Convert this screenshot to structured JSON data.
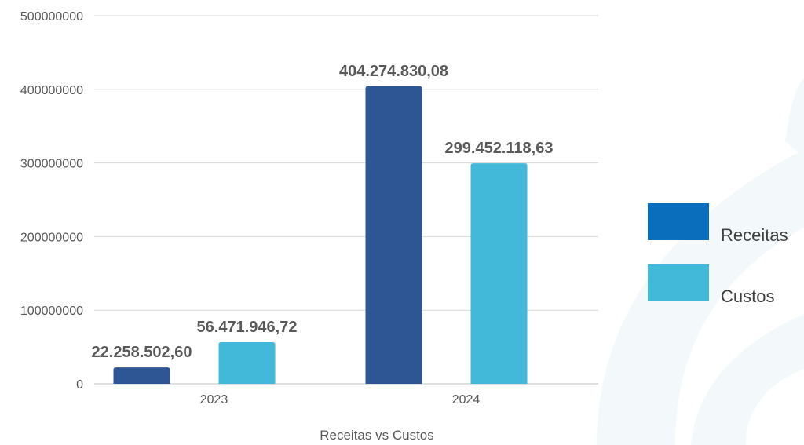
{
  "chart_data": {
    "type": "bar",
    "title": "Receitas vs Custos",
    "categories": [
      "2023",
      "2024"
    ],
    "series": [
      {
        "name": "Receitas",
        "values": [
          22258502.6,
          404274830.08
        ],
        "labels": [
          "22.258.502,60",
          "404.274.830,08"
        ],
        "color": "#2e5594"
      },
      {
        "name": "Custos",
        "values": [
          56471946.72,
          299452118.63
        ],
        "labels": [
          "56.471.946,72",
          "299.452.118,63"
        ],
        "color": "#43b9d9"
      }
    ],
    "ylim": [
      0,
      500000000
    ],
    "yticks": [
      "0",
      "100000000",
      "200000000",
      "300000000",
      "400000000",
      "500000000"
    ],
    "grid": true,
    "legend_position": "right",
    "legend_swatch_colors": [
      "#0a6ebd",
      "#43b9d9"
    ]
  },
  "background_decoration_color": "#f3f8fb"
}
